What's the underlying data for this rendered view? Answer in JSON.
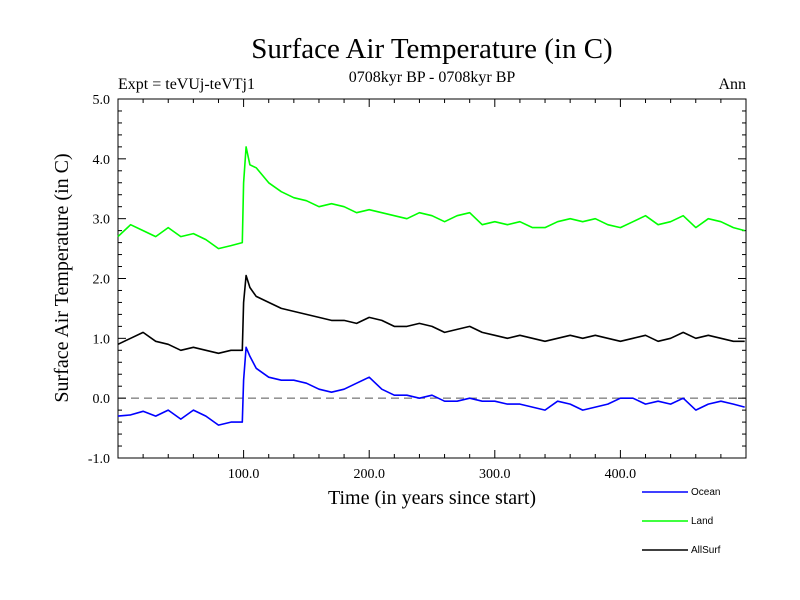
{
  "chart_data": {
    "type": "line",
    "title": "Surface Air Temperature (in C)",
    "subtitle": "0708kyr BP - 0708kyr BP",
    "experiment": "Expt = teVUj-teVTj1",
    "period": "Ann",
    "xlabel": "Time (in years since start)",
    "ylabel": "Surface Air Temperature (in C)",
    "xlim": [
      0,
      500
    ],
    "ylim": [
      -1.0,
      5.0
    ],
    "x_ticks": [
      100,
      200,
      300,
      400
    ],
    "x_tick_labels": [
      "100.0",
      "200.0",
      "300.0",
      "400.0"
    ],
    "y_ticks": [
      -1.0,
      0.0,
      1.0,
      2.0,
      3.0,
      4.0,
      5.0
    ],
    "y_tick_labels": [
      "-1.0",
      "0.0",
      "1.0",
      "2.0",
      "3.0",
      "4.0",
      "5.0"
    ],
    "reference_line": 0.0,
    "legend_position": "bottom-right",
    "series": [
      {
        "name": "Ocean",
        "color": "#0000ff",
        "x": [
          0,
          10,
          20,
          30,
          40,
          50,
          60,
          70,
          80,
          90,
          99,
          100,
          102,
          105,
          110,
          120,
          130,
          140,
          150,
          160,
          170,
          180,
          190,
          200,
          210,
          220,
          230,
          240,
          250,
          260,
          270,
          280,
          290,
          300,
          310,
          320,
          330,
          340,
          350,
          360,
          370,
          380,
          390,
          400,
          410,
          420,
          430,
          440,
          450,
          460,
          470,
          480,
          490,
          499
        ],
        "values": [
          -0.3,
          -0.28,
          -0.22,
          -0.3,
          -0.2,
          -0.35,
          -0.2,
          -0.3,
          -0.45,
          -0.4,
          -0.4,
          0.3,
          0.85,
          0.7,
          0.5,
          0.35,
          0.3,
          0.3,
          0.25,
          0.15,
          0.1,
          0.15,
          0.25,
          0.35,
          0.15,
          0.05,
          0.05,
          0.0,
          0.05,
          -0.05,
          -0.05,
          0.0,
          -0.05,
          -0.05,
          -0.1,
          -0.1,
          -0.15,
          -0.2,
          -0.05,
          -0.1,
          -0.2,
          -0.15,
          -0.1,
          0.0,
          0.0,
          -0.1,
          -0.05,
          -0.1,
          0.0,
          -0.2,
          -0.1,
          -0.05,
          -0.1,
          -0.15
        ]
      },
      {
        "name": "Land",
        "color": "#00ff00",
        "x": [
          0,
          10,
          20,
          30,
          40,
          50,
          60,
          70,
          80,
          90,
          99,
          100,
          102,
          105,
          110,
          120,
          130,
          140,
          150,
          160,
          170,
          180,
          190,
          200,
          210,
          220,
          230,
          240,
          250,
          260,
          270,
          280,
          290,
          300,
          310,
          320,
          330,
          340,
          350,
          360,
          370,
          380,
          390,
          400,
          410,
          420,
          430,
          440,
          450,
          460,
          470,
          480,
          490,
          499
        ],
        "values": [
          2.7,
          2.9,
          2.8,
          2.7,
          2.85,
          2.7,
          2.75,
          2.65,
          2.5,
          2.55,
          2.6,
          3.6,
          4.2,
          3.9,
          3.85,
          3.6,
          3.45,
          3.35,
          3.3,
          3.2,
          3.25,
          3.2,
          3.1,
          3.15,
          3.1,
          3.05,
          3.0,
          3.1,
          3.05,
          2.95,
          3.05,
          3.1,
          2.9,
          2.95,
          2.9,
          2.95,
          2.85,
          2.85,
          2.95,
          3.0,
          2.95,
          3.0,
          2.9,
          2.85,
          2.95,
          3.05,
          2.9,
          2.95,
          3.05,
          2.85,
          3.0,
          2.95,
          2.85,
          2.8
        ]
      },
      {
        "name": "AllSurf",
        "color": "#000000",
        "x": [
          0,
          10,
          20,
          30,
          40,
          50,
          60,
          70,
          80,
          90,
          99,
          100,
          102,
          105,
          110,
          120,
          130,
          140,
          150,
          160,
          170,
          180,
          190,
          200,
          210,
          220,
          230,
          240,
          250,
          260,
          270,
          280,
          290,
          300,
          310,
          320,
          330,
          340,
          350,
          360,
          370,
          380,
          390,
          400,
          410,
          420,
          430,
          440,
          450,
          460,
          470,
          480,
          490,
          499
        ],
        "values": [
          0.9,
          1.0,
          1.1,
          0.95,
          0.9,
          0.8,
          0.85,
          0.8,
          0.75,
          0.8,
          0.8,
          1.6,
          2.05,
          1.85,
          1.7,
          1.6,
          1.5,
          1.45,
          1.4,
          1.35,
          1.3,
          1.3,
          1.25,
          1.35,
          1.3,
          1.2,
          1.2,
          1.25,
          1.2,
          1.1,
          1.15,
          1.2,
          1.1,
          1.05,
          1.0,
          1.05,
          1.0,
          0.95,
          1.0,
          1.05,
          1.0,
          1.05,
          1.0,
          0.95,
          1.0,
          1.05,
          0.95,
          1.0,
          1.1,
          1.0,
          1.05,
          1.0,
          0.95,
          0.95
        ]
      }
    ]
  }
}
